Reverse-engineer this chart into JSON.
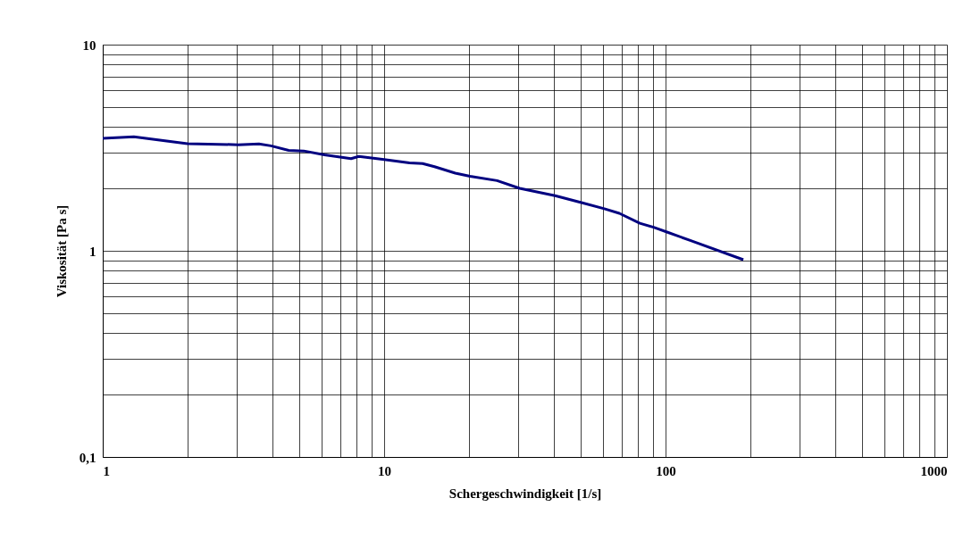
{
  "chart_data": {
    "type": "line",
    "xlabel": "Schergeschwindigkeit [1/s]",
    "ylabel": "Viskosität [Pa s]",
    "log": "xy",
    "grid": true,
    "marker": "none",
    "line_style": "solid",
    "xlim": [
      1,
      1000
    ],
    "ylim": [
      0.1,
      10
    ],
    "xticks": [
      1,
      {
        "value": 2,
        "label": null
      },
      {
        "value": 3,
        "label": null
      },
      {
        "value": 4,
        "label": null
      },
      {
        "value": 5,
        "label": null
      },
      {
        "value": 6,
        "label": null
      },
      {
        "value": 7,
        "label": null
      },
      {
        "value": 8,
        "label": null
      },
      {
        "value": 9,
        "label": null
      },
      10,
      {
        "value": 20,
        "label": null
      },
      {
        "value": 30,
        "label": null
      },
      {
        "value": 40,
        "label": null
      },
      {
        "value": 50,
        "label": null
      },
      {
        "value": 60,
        "label": null
      },
      {
        "value": 70,
        "label": null
      },
      {
        "value": 80,
        "label": null
      },
      {
        "value": 90,
        "label": null
      },
      100,
      {
        "value": 200,
        "label": null
      },
      {
        "value": 300,
        "label": null
      },
      {
        "value": 400,
        "label": null
      },
      {
        "value": 500,
        "label": null
      },
      {
        "value": 600,
        "label": null
      },
      {
        "value": 700,
        "label": null
      },
      {
        "value": 800,
        "label": null
      },
      {
        "value": 900,
        "label": null
      },
      1000
    ],
    "yticks": [
      {
        "value": 0.1,
        "label": "0,1"
      },
      {
        "value": 0.2,
        "label": null
      },
      {
        "value": 0.3,
        "label": null
      },
      {
        "value": 0.4,
        "label": null
      },
      {
        "value": 0.5,
        "label": null
      },
      {
        "value": 0.6,
        "label": null
      },
      {
        "value": 0.7,
        "label": null
      },
      {
        "value": 0.8,
        "label": null
      },
      {
        "value": 0.9,
        "label": null
      },
      1,
      {
        "value": 2,
        "label": null
      },
      {
        "value": 3,
        "label": null
      },
      {
        "value": 4,
        "label": null
      },
      {
        "value": 5,
        "label": null
      },
      {
        "value": 6,
        "label": null
      },
      {
        "value": 7,
        "label": null
      },
      {
        "value": 8,
        "label": null
      },
      {
        "value": 9,
        "label": null
      },
      10
    ],
    "series": [
      {
        "color": "#000080",
        "x": [
          1.0,
          1.29,
          2.0,
          3.03,
          3.59,
          3.96,
          4.58,
          5.18,
          6.14,
          7.63,
          8.13,
          10.0,
          12.3,
          13.7,
          15.1,
          17.9,
          20.2,
          25.2,
          30.3,
          40.5,
          50.6,
          60.6,
          68.5,
          81.0,
          90.7,
          101.7,
          123,
          189
        ],
        "values": [
          3.51,
          3.57,
          3.31,
          3.27,
          3.3,
          3.23,
          3.07,
          3.05,
          2.92,
          2.8,
          2.87,
          2.77,
          2.67,
          2.65,
          2.56,
          2.38,
          2.3,
          2.19,
          2.01,
          1.85,
          1.71,
          1.6,
          1.52,
          1.36,
          1.3,
          1.23,
          1.12,
          0.905
        ]
      }
    ]
  }
}
